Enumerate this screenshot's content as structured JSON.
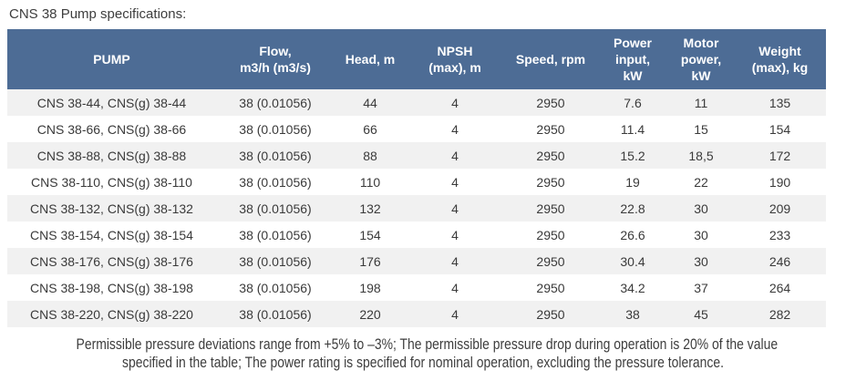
{
  "title": "CNS 38 Pump specifications:",
  "colors": {
    "header_bg": "#4d6c95",
    "header_text": "#ffffff",
    "stripe_row_bg": "#f1f1f1",
    "body_text": "#3a3a3a",
    "caption_text": "#3d3d3d"
  },
  "table": {
    "column_keys": [
      "pump",
      "flow",
      "head",
      "npsh",
      "speed",
      "power_input",
      "motor_power",
      "weight"
    ],
    "columns": [
      {
        "label": "PUMP"
      },
      {
        "label": "Flow,\nm3/h (m3/s)"
      },
      {
        "label": "Head, m"
      },
      {
        "label": "NPSH\n(max), m"
      },
      {
        "label": "Speed, rpm"
      },
      {
        "label": "Power\ninput,\nkW"
      },
      {
        "label": "Motor\npower,\nkW"
      },
      {
        "label": "Weight\n(max), kg"
      }
    ],
    "rows": [
      [
        "CNS 38-44, CNS(g) 38-44",
        "38 (0.01056)",
        "44",
        "4",
        "2950",
        "7.6",
        "11",
        "135"
      ],
      [
        "CNS 38-66, CNS(g) 38-66",
        "38 (0.01056)",
        "66",
        "4",
        "2950",
        "11.4",
        "15",
        "154"
      ],
      [
        "CNS 38-88, CNS(g) 38-88",
        "38 (0.01056)",
        "88",
        "4",
        "2950",
        "15.2",
        "18,5",
        "172"
      ],
      [
        "CNS 38-110, CNS(g) 38-110",
        "38 (0.01056)",
        "110",
        "4",
        "2950",
        "19",
        "22",
        "190"
      ],
      [
        "CNS 38-132, CNS(g) 38-132",
        "38 (0.01056)",
        "132",
        "4",
        "2950",
        "22.8",
        "30",
        "209"
      ],
      [
        "CNS 38-154, CNS(g) 38-154",
        "38 (0.01056)",
        "154",
        "4",
        "2950",
        "26.6",
        "30",
        "233"
      ],
      [
        "CNS 38-176, CNS(g) 38-176",
        "38 (0.01056)",
        "176",
        "4",
        "2950",
        "30.4",
        "30",
        "246"
      ],
      [
        "CNS 38-198, CNS(g) 38-198",
        "38 (0.01056)",
        "198",
        "4",
        "2950",
        "34.2",
        "37",
        "264"
      ],
      [
        "CNS 38-220, CNS(g) 38-220",
        "38 (0.01056)",
        "220",
        "4",
        "2950",
        "38",
        "45",
        "282"
      ]
    ]
  },
  "footnote": {
    "line1": "Permissible pressure deviations range from +5% to –3%; The permissible pressure drop during operation is 20% of the value",
    "line2": "specified in the table; The power rating is specified for nominal operation, excluding the pressure tolerance."
  }
}
